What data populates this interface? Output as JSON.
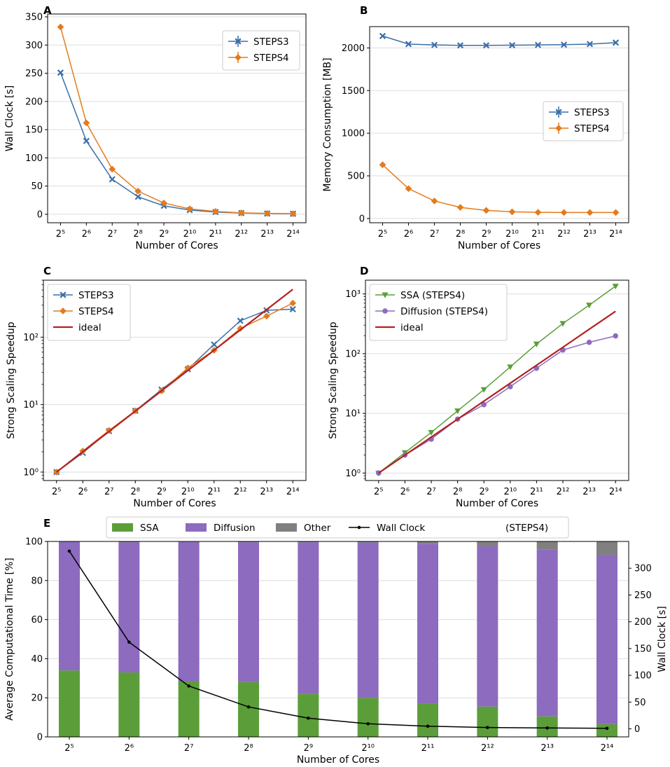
{
  "colors": {
    "steps3": "#3b6fa8",
    "steps4": "#e57a1c",
    "ideal": "#b22222",
    "ssa": "#5b9e39",
    "diffusion": "#8d6bbf",
    "other": "#808080",
    "wall": "#000000",
    "grid": "#dddddd"
  },
  "chart_data": [
    {
      "panel": "A",
      "type": "line",
      "xlabel": "Number of Cores",
      "ylabel": "Wall Clock [s]",
      "x_exponents": [
        5,
        6,
        7,
        8,
        9,
        10,
        11,
        12,
        13,
        14
      ],
      "x_tick_labels": [
        "2⁵",
        "2⁶",
        "2⁷",
        "2⁸",
        "2⁹",
        "2¹⁰",
        "2¹¹",
        "2¹²",
        "2¹³",
        "2¹⁴"
      ],
      "yscale": "linear",
      "ylim": [
        -15,
        355
      ],
      "yticks": [
        0,
        50,
        100,
        150,
        200,
        250,
        300,
        350
      ],
      "ytick_labels": [
        "0",
        "50",
        "100",
        "150",
        "200",
        "250",
        "300",
        "350"
      ],
      "legend_position": "top-right",
      "series": [
        {
          "name": "STEPS3",
          "marker": "x",
          "color_key": "steps3",
          "values": [
            251,
            130,
            62,
            31,
            15,
            7.5,
            4,
            2.2,
            1.3,
            1
          ]
        },
        {
          "name": "STEPS4",
          "marker": "diamond",
          "color_key": "steps4",
          "values": [
            332,
            162,
            80,
            41,
            20,
            9.5,
            5,
            2.5,
            1.6,
            1
          ]
        }
      ]
    },
    {
      "panel": "B",
      "type": "line",
      "xlabel": "Number of Cores",
      "ylabel": "Memory Consumption [MB]",
      "x_exponents": [
        5,
        6,
        7,
        8,
        9,
        10,
        11,
        12,
        13,
        14
      ],
      "x_tick_labels": [
        "2⁵",
        "2⁶",
        "2⁷",
        "2⁸",
        "2⁹",
        "2¹⁰",
        "2¹¹",
        "2¹²",
        "2¹³",
        "2¹⁴"
      ],
      "yscale": "linear",
      "ylim": [
        -50,
        2250
      ],
      "yticks": [
        0,
        500,
        1000,
        1500,
        2000
      ],
      "ytick_labels": [
        "0",
        "500",
        "1000",
        "1500",
        "2000"
      ],
      "legend_position": "center-right",
      "series": [
        {
          "name": "STEPS3",
          "marker": "x",
          "color_key": "steps3",
          "values": [
            2140,
            2045,
            2035,
            2030,
            2030,
            2032,
            2035,
            2038,
            2045,
            2062
          ]
        },
        {
          "name": "STEPS4",
          "marker": "diamond",
          "color_key": "steps4",
          "values": [
            630,
            350,
            205,
            130,
            95,
            78,
            72,
            70,
            70,
            70
          ]
        }
      ]
    },
    {
      "panel": "C",
      "type": "line",
      "xlabel": "Number of Cores",
      "ylabel": "Strong Scaling Speedup",
      "x_exponents": [
        5,
        6,
        7,
        8,
        9,
        10,
        11,
        12,
        13,
        14
      ],
      "x_tick_labels": [
        "2⁵",
        "2⁶",
        "2⁷",
        "2⁸",
        "2⁹",
        "2¹⁰",
        "2¹¹",
        "2¹²",
        "2¹³",
        "2¹⁴"
      ],
      "yscale": "log",
      "ylim": [
        0.75,
        700
      ],
      "yticks": [
        1,
        10,
        100
      ],
      "ytick_labels": [
        "10⁰",
        "10¹",
        "10²"
      ],
      "legend_position": "top-left",
      "series": [
        {
          "name": "STEPS3",
          "marker": "x",
          "color_key": "steps3",
          "values": [
            1,
            1.93,
            4.05,
            8.1,
            16.7,
            33.5,
            78,
            175,
            250,
            260
          ]
        },
        {
          "name": "STEPS4",
          "marker": "diamond",
          "color_key": "steps4",
          "values": [
            1,
            2.05,
            4.15,
            8.1,
            16,
            35,
            64,
            135,
            205,
            320
          ]
        },
        {
          "name": "ideal",
          "marker": "none",
          "color_key": "ideal",
          "values": [
            1,
            2,
            4,
            8,
            16,
            32,
            64,
            128,
            256,
            512
          ]
        }
      ]
    },
    {
      "panel": "D",
      "type": "line",
      "xlabel": "Number of Cores",
      "ylabel": "Strong Scaling Speedup",
      "x_exponents": [
        5,
        6,
        7,
        8,
        9,
        10,
        11,
        12,
        13,
        14
      ],
      "x_tick_labels": [
        "2⁵",
        "2⁶",
        "2⁷",
        "2⁸",
        "2⁹",
        "2¹⁰",
        "2¹¹",
        "2¹²",
        "2¹³",
        "2¹⁴"
      ],
      "yscale": "log",
      "ylim": [
        0.75,
        1700
      ],
      "yticks": [
        1,
        10,
        100,
        1000
      ],
      "ytick_labels": [
        "10⁰",
        "10¹",
        "10²",
        "10³"
      ],
      "legend_position": "top-left",
      "series": [
        {
          "name": "SSA (STEPS4)",
          "marker": "triangle-down",
          "color_key": "ssa",
          "values": [
            1,
            2.2,
            4.8,
            11,
            25,
            60,
            145,
            320,
            650,
            1350
          ]
        },
        {
          "name": "Diffusion (STEPS4)",
          "marker": "circle",
          "color_key": "diffusion",
          "values": [
            1,
            2,
            3.7,
            8,
            14,
            28,
            57,
            115,
            155,
            198
          ]
        },
        {
          "name": "ideal",
          "marker": "none",
          "color_key": "ideal",
          "values": [
            1,
            2,
            4,
            8,
            16,
            32,
            64,
            128,
            256,
            512
          ]
        }
      ]
    },
    {
      "panel": "E",
      "type": "bar",
      "stacked": true,
      "xlabel": "Number of Cores",
      "ylabel": "Average Computational Time [%]",
      "ylabel_right": "Wall Clock [s]",
      "legend_extra_label": "(STEPS4)",
      "x_exponents": [
        5,
        6,
        7,
        8,
        9,
        10,
        11,
        12,
        13,
        14
      ],
      "x_tick_labels": [
        "2⁵",
        "2⁶",
        "2⁷",
        "2⁸",
        "2⁹",
        "2¹⁰",
        "2¹¹",
        "2¹²",
        "2¹³",
        "2¹⁴"
      ],
      "ylim": [
        0,
        100
      ],
      "yticks": [
        0,
        20,
        40,
        60,
        80,
        100
      ],
      "ytick_labels": [
        "0",
        "20",
        "40",
        "60",
        "80",
        "100"
      ],
      "ylim_right": [
        -15,
        350
      ],
      "yticks_right": [
        0,
        50,
        100,
        150,
        200,
        250,
        300
      ],
      "ytick_labels_right": [
        "0",
        "50",
        "100",
        "150",
        "200",
        "250",
        "300"
      ],
      "series": [
        {
          "name": "SSA",
          "color_key": "ssa",
          "values": [
            34,
            33,
            28.5,
            28,
            22,
            20,
            17,
            15.5,
            10.5,
            6.5
          ]
        },
        {
          "name": "Diffusion",
          "color_key": "diffusion",
          "values": [
            66,
            66.6,
            71.2,
            71.6,
            77.6,
            79.5,
            81.8,
            82,
            85.5,
            86.5
          ]
        },
        {
          "name": "Other",
          "color_key": "other",
          "values": [
            0,
            0.4,
            0.3,
            0.4,
            0.4,
            0.5,
            1.2,
            2.5,
            4,
            7
          ]
        }
      ],
      "line_series": {
        "name": "Wall Clock",
        "color_key": "wall",
        "values": [
          332,
          162,
          80,
          41,
          20,
          9.5,
          5,
          2.5,
          1.6,
          1
        ]
      }
    }
  ]
}
